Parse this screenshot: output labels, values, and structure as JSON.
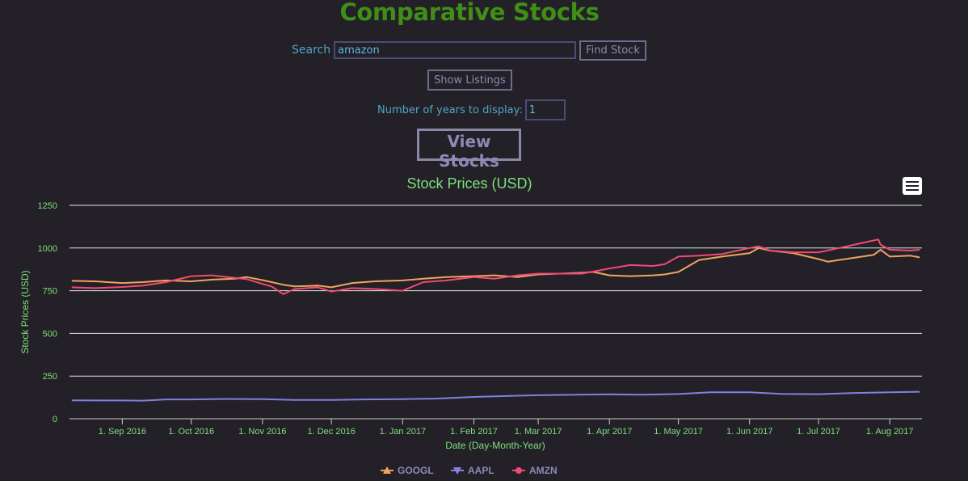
{
  "page": {
    "title": "Comparative Stocks",
    "search": {
      "label": "Search",
      "value": "amazon",
      "button": "Find Stock"
    },
    "listings_button": "Show Listings",
    "years": {
      "label": "Number of years to display:",
      "value": "1"
    },
    "view_button": "View Stocks"
  },
  "colors": {
    "background": "#232027",
    "title": "#3f8f16",
    "chart_text": "#7de07a",
    "GOOGL": "#f0a35e",
    "AAPL": "#8181e0",
    "AMZN": "#f04a75"
  },
  "chart_data": {
    "type": "line",
    "title": "Stock Prices (USD)",
    "xlabel": "Date (Day-Month-Year)",
    "ylabel": "Stock Prices (USD)",
    "ylim": [
      0,
      1250
    ],
    "yticks": [
      0,
      250,
      500,
      750,
      1000,
      1250
    ],
    "xlim": [
      "2016-08-09",
      "2017-08-15"
    ],
    "xticks": [
      "1. Sep 2016",
      "1. Oct 2016",
      "1. Nov 2016",
      "1. Dec 2016",
      "1. Jan 2017",
      "1. Feb 2017",
      "1. Mar 2017",
      "1. Apr 2017",
      "1. May 2017",
      "1. Jun 2017",
      "1. Jul 2017",
      "1. Aug 2017"
    ],
    "grid": true,
    "legend": "bottom-center",
    "series": [
      {
        "name": "GOOGL",
        "marker": "triangle-up",
        "x": [
          "2016-08-10",
          "2016-08-20",
          "2016-09-01",
          "2016-09-10",
          "2016-09-20",
          "2016-10-01",
          "2016-10-10",
          "2016-10-20",
          "2016-10-25",
          "2016-11-01",
          "2016-11-10",
          "2016-11-15",
          "2016-11-25",
          "2016-12-01",
          "2016-12-10",
          "2016-12-20",
          "2017-01-01",
          "2017-01-10",
          "2017-01-20",
          "2017-02-01",
          "2017-02-10",
          "2017-02-20",
          "2017-03-01",
          "2017-03-10",
          "2017-03-20",
          "2017-03-25",
          "2017-04-01",
          "2017-04-10",
          "2017-04-20",
          "2017-04-25",
          "2017-05-01",
          "2017-05-10",
          "2017-05-20",
          "2017-06-01",
          "2017-06-05",
          "2017-06-10",
          "2017-06-20",
          "2017-07-01",
          "2017-07-05",
          "2017-07-15",
          "2017-07-25",
          "2017-07-28",
          "2017-08-01",
          "2017-08-10",
          "2017-08-14"
        ],
        "y": [
          808,
          805,
          795,
          800,
          810,
          805,
          815,
          820,
          830,
          812,
          785,
          775,
          780,
          770,
          795,
          805,
          810,
          820,
          830,
          835,
          840,
          830,
          845,
          850,
          855,
          860,
          840,
          835,
          840,
          845,
          860,
          930,
          950,
          970,
          1000,
          985,
          970,
          935,
          920,
          940,
          960,
          990,
          950,
          955,
          945
        ]
      },
      {
        "name": "AAPL",
        "marker": "triangle-down",
        "x": [
          "2016-08-10",
          "2016-09-01",
          "2016-09-10",
          "2016-09-20",
          "2016-10-01",
          "2016-10-15",
          "2016-11-01",
          "2016-11-15",
          "2016-12-01",
          "2016-12-15",
          "2017-01-01",
          "2017-01-15",
          "2017-02-01",
          "2017-02-15",
          "2017-03-01",
          "2017-03-15",
          "2017-04-01",
          "2017-04-15",
          "2017-05-01",
          "2017-05-15",
          "2017-06-01",
          "2017-06-15",
          "2017-07-01",
          "2017-07-15",
          "2017-08-01",
          "2017-08-14"
        ],
        "y": [
          108,
          107,
          106,
          113,
          113,
          116,
          115,
          110,
          110,
          113,
          115,
          118,
          128,
          133,
          138,
          140,
          143,
          141,
          145,
          155,
          155,
          146,
          144,
          150,
          155,
          158
        ]
      },
      {
        "name": "AMZN",
        "marker": "circle",
        "x": [
          "2016-08-10",
          "2016-08-20",
          "2016-09-01",
          "2016-09-10",
          "2016-09-20",
          "2016-10-01",
          "2016-10-10",
          "2016-10-20",
          "2016-10-25",
          "2016-11-01",
          "2016-11-05",
          "2016-11-10",
          "2016-11-15",
          "2016-11-25",
          "2016-12-01",
          "2016-12-10",
          "2016-12-20",
          "2017-01-01",
          "2017-01-10",
          "2017-01-20",
          "2017-02-01",
          "2017-02-10",
          "2017-02-20",
          "2017-03-01",
          "2017-03-10",
          "2017-03-20",
          "2017-04-01",
          "2017-04-10",
          "2017-04-20",
          "2017-04-25",
          "2017-05-01",
          "2017-05-10",
          "2017-05-20",
          "2017-06-01",
          "2017-06-05",
          "2017-06-10",
          "2017-06-20",
          "2017-07-01",
          "2017-07-10",
          "2017-07-20",
          "2017-07-27",
          "2017-07-28",
          "2017-08-01",
          "2017-08-10",
          "2017-08-14"
        ],
        "y": [
          770,
          765,
          772,
          780,
          800,
          835,
          840,
          825,
          818,
          790,
          775,
          730,
          760,
          770,
          745,
          765,
          760,
          750,
          800,
          810,
          830,
          820,
          840,
          850,
          850,
          850,
          880,
          900,
          895,
          905,
          950,
          955,
          965,
          1000,
          1010,
          985,
          975,
          975,
          1000,
          1030,
          1050,
          1020,
          990,
          985,
          990
        ]
      }
    ]
  }
}
